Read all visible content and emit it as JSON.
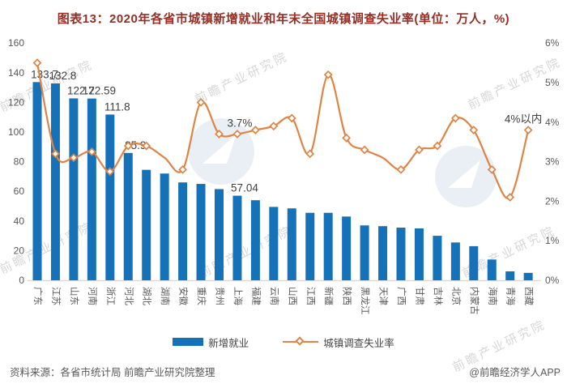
{
  "title": "图表13：2020年各省市城镇新增就业和年末全国城镇调查失业率(单位：万人，%)",
  "colors": {
    "bar": "#1572B8",
    "line": "#E08445",
    "title": "#952E24",
    "axis_text": "#595959",
    "label_text": "#3F3F3F",
    "axis_line": "#D9D9D9"
  },
  "chart_data": {
    "type": "bar",
    "subtype": "bar+line combo, dual axis",
    "title": "2020年各省市城镇新增就业和年末全国城镇调查失业率",
    "categories": [
      "广东",
      "江苏",
      "山东",
      "河南",
      "浙江",
      "河北",
      "湖北",
      "湖南",
      "安徽",
      "重庆",
      "贵州",
      "上海",
      "福建",
      "云南",
      "山西",
      "江西",
      "新疆",
      "陕西",
      "黑龙江",
      "天津",
      "广西",
      "甘肃",
      "吉林",
      "北京",
      "内蒙古",
      "海南",
      "青海",
      "西藏"
    ],
    "series": [
      {
        "name": "新增就业",
        "type": "bar",
        "axis": "left",
        "unit": "万人",
        "values": [
          133.7,
          132.8,
          122.7,
          122.59,
          111.8,
          85.9,
          74.5,
          72,
          66,
          65,
          61.5,
          57.04,
          54,
          49.5,
          48.5,
          45.5,
          45.5,
          43,
          37,
          36.5,
          35.5,
          35,
          30,
          25.5,
          23,
          14,
          6,
          5
        ],
        "value_labels": [
          "133.7",
          "132.8",
          "122.7",
          "122.59",
          "111.8",
          "85.9",
          null,
          null,
          null,
          null,
          null,
          "57.04",
          null,
          null,
          null,
          null,
          null,
          null,
          null,
          null,
          null,
          null,
          null,
          null,
          null,
          null,
          null,
          null
        ]
      },
      {
        "name": "城镇调查失业率",
        "type": "line",
        "axis": "right",
        "unit": "%",
        "values": [
          5.5,
          3.2,
          3.1,
          3.25,
          2.75,
          3.4,
          3.4,
          3.1,
          2.8,
          4.5,
          3.7,
          3.7,
          3.8,
          3.9,
          4.1,
          3.2,
          5.2,
          3.6,
          3.3,
          3.1,
          2.8,
          3.3,
          3.4,
          4.1,
          3.8,
          2.8,
          2.1,
          3.8
        ],
        "point_labels": [
          null,
          null,
          null,
          null,
          null,
          null,
          null,
          null,
          null,
          null,
          null,
          "3.7%",
          null,
          null,
          null,
          null,
          null,
          null,
          null,
          null,
          null,
          null,
          null,
          null,
          null,
          null,
          null,
          "4%以内"
        ],
        "hidden_marker_indices": [
          7,
          19
        ]
      }
    ],
    "left_axis": {
      "min": 0,
      "max": 160,
      "step": 20,
      "ticks": [
        "160",
        "140",
        "120",
        "100",
        "80",
        "60",
        "40",
        "20",
        "0"
      ]
    },
    "right_axis": {
      "min": 0,
      "max": 6,
      "step": 1,
      "ticks": [
        "6%",
        "5%",
        "4%",
        "3%",
        "2%",
        "1%",
        "0%"
      ]
    },
    "grid": false,
    "legend_position": "bottom"
  },
  "legend": {
    "bar_label": "新增就业",
    "line_label": "城镇调查失业率"
  },
  "footer": {
    "source": "资料来源：各省市统计局 前瞻产业研究院整理",
    "credit": "@前瞻经济学人APP"
  },
  "watermark": {
    "text": "前瞻产业研究院"
  }
}
